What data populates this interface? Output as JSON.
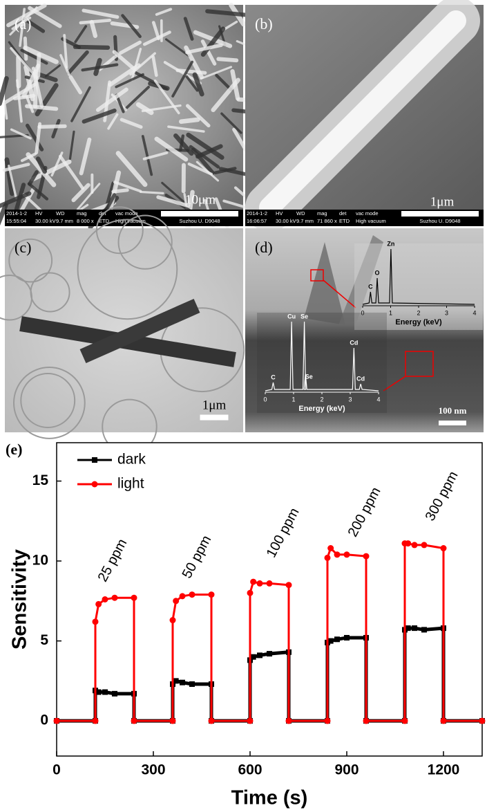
{
  "panels": [
    {
      "label": "(a)",
      "scale_bar": "10μm",
      "info_header": [
        "2014-1-2",
        "HV",
        "WD",
        "mag",
        "det",
        "vac mode"
      ],
      "info_values": [
        "15:55:04",
        "30.00 kV",
        "9.7 mm",
        "8 000 x",
        "ETD",
        "High vacuum"
      ],
      "info_site": "Suzhou U. D9048"
    },
    {
      "label": "(b)",
      "scale_bar": "1μm",
      "info_header": [
        "2014-1-2",
        "HV",
        "WD",
        "mag",
        "det",
        "vac mode"
      ],
      "info_values": [
        "16:06:57",
        "30.00 kV",
        "9.7 mm",
        "71 860 x",
        "ETD",
        "High vacuum"
      ],
      "info_site": "Suzhou U. D9048"
    },
    {
      "label": "(c)",
      "scale_bar": "1μm"
    },
    {
      "label": "(d)",
      "scale_bar": "100 nm",
      "insets": [
        {
          "peaks": [
            "Zn",
            "O",
            "C"
          ],
          "axis_label": "Energy (keV)",
          "ticks": [
            0,
            1,
            2,
            3,
            4
          ]
        },
        {
          "peaks": [
            "Cu",
            "Se",
            "Se",
            "Cd",
            "Cd",
            "C"
          ],
          "axis_label": "Energy (keV)",
          "ticks": [
            0,
            1,
            2,
            3,
            4
          ]
        }
      ]
    }
  ],
  "chart_data": {
    "type": "line",
    "panel_label": "(e)",
    "x_label": "Time (s)",
    "y_label": "Sensitivity",
    "x": [
      0,
      120,
      120,
      130,
      150,
      180,
      240,
      240,
      360,
      360,
      370,
      390,
      420,
      480,
      480,
      600,
      600,
      610,
      630,
      660,
      720,
      720,
      840,
      840,
      850,
      870,
      900,
      960,
      960,
      1080,
      1080,
      1090,
      1110,
      1140,
      1200,
      1200,
      1320
    ],
    "series": [
      {
        "name": "dark",
        "color": "#000000",
        "marker": "square",
        "values": [
          0,
          0,
          1.9,
          1.8,
          1.8,
          1.7,
          1.7,
          0,
          0,
          2.3,
          2.5,
          2.4,
          2.3,
          2.3,
          0,
          0,
          3.8,
          4.0,
          4.1,
          4.2,
          4.3,
          0,
          0,
          4.9,
          5.0,
          5.1,
          5.2,
          5.2,
          0,
          0,
          5.7,
          5.8,
          5.8,
          5.7,
          5.8,
          0,
          0
        ]
      },
      {
        "name": "light",
        "color": "#ff0000",
        "marker": "circle",
        "values": [
          0,
          0,
          6.2,
          7.3,
          7.6,
          7.7,
          7.7,
          0,
          0,
          6.3,
          7.5,
          7.8,
          7.9,
          7.9,
          0,
          0,
          8.0,
          8.7,
          8.6,
          8.6,
          8.5,
          0,
          0,
          10.2,
          10.8,
          10.4,
          10.4,
          10.3,
          0,
          0,
          11.1,
          11.1,
          11.0,
          11.0,
          10.8,
          0,
          0
        ]
      }
    ],
    "annotations": [
      "25 ppm",
      "50 ppm",
      "100 ppm",
      "200 ppm",
      "300 ppm"
    ],
    "xlim": [
      0,
      1320
    ],
    "xticks": [
      0,
      300,
      600,
      900,
      1200
    ],
    "ylim": [
      -2.2,
      17.4
    ],
    "yticks": [
      0,
      5,
      10,
      15
    ],
    "legend": "upper left"
  }
}
